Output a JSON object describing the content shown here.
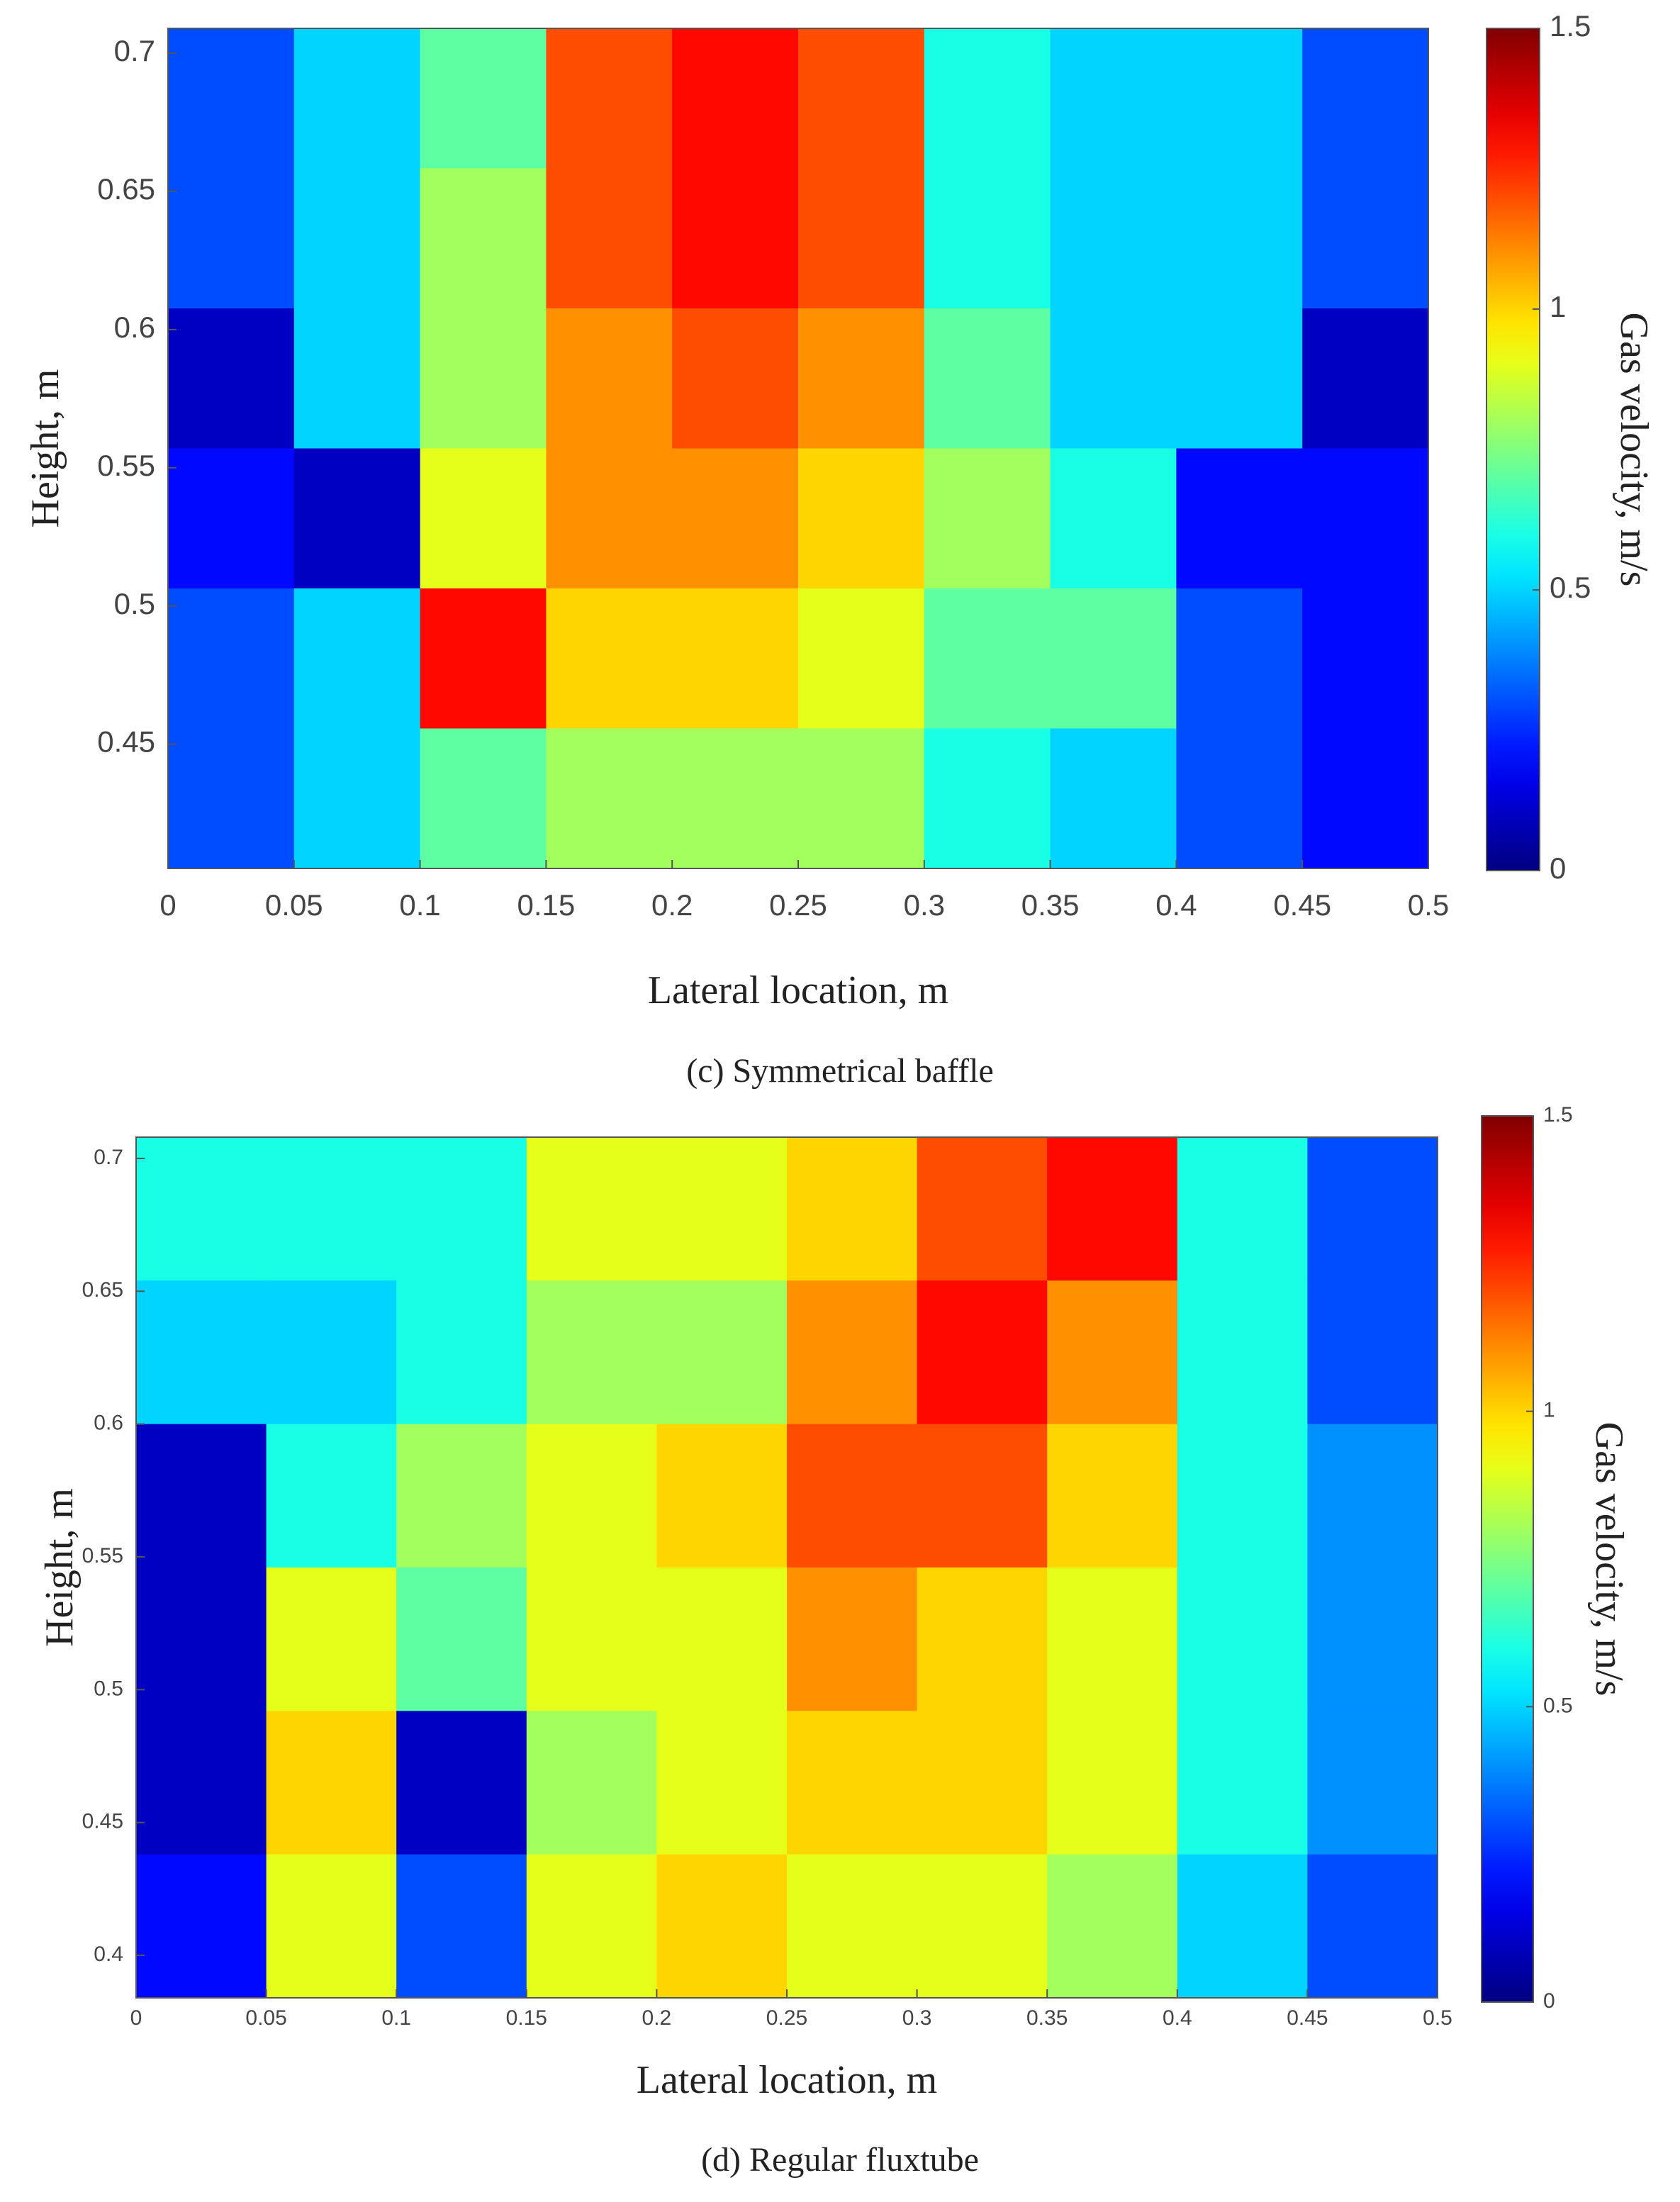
{
  "chart_data": [
    {
      "type": "contour",
      "colormap": "jet",
      "xlabel": "Lateral location, m",
      "ylabel": "Height, m",
      "caption": "(c) Symmetrical baffle",
      "xlim": [
        0,
        0.5
      ],
      "ylim": [
        0.405,
        0.709
      ],
      "xticks": [
        0,
        0.05,
        0.1,
        0.15,
        0.2,
        0.25,
        0.3,
        0.35,
        0.4,
        0.45,
        0.5
      ],
      "yticks": [
        0.45,
        0.5,
        0.55,
        0.6,
        0.65,
        0.7
      ],
      "z": [
        [
          0.3,
          0.5,
          0.7,
          1.2,
          1.3,
          1.2,
          0.6,
          0.5,
          0.5,
          0.3
        ],
        [
          0.3,
          0.5,
          0.8,
          1.2,
          1.3,
          1.2,
          0.6,
          0.5,
          0.5,
          0.3
        ],
        [
          0.1,
          0.5,
          0.8,
          1.1,
          1.2,
          1.1,
          0.7,
          0.5,
          0.5,
          0.1
        ],
        [
          0.2,
          0.1,
          0.9,
          1.1,
          1.1,
          1.0,
          0.8,
          0.6,
          0.2,
          0.2
        ],
        [
          0.3,
          0.5,
          1.3,
          1.0,
          1.0,
          0.9,
          0.7,
          0.7,
          0.3,
          0.2
        ],
        [
          0.3,
          0.5,
          0.7,
          0.8,
          0.8,
          0.8,
          0.6,
          0.5,
          0.3,
          0.2
        ]
      ],
      "colorbar": {
        "label": "Gas velocity, m/s",
        "lim": [
          0,
          1.5
        ],
        "ticks": [
          0,
          0.5,
          1,
          1.5
        ]
      }
    },
    {
      "type": "contour",
      "colormap": "jet",
      "xlabel": "Lateral location, m",
      "ylabel": "Height, m",
      "caption": "(d) Regular fluxtube",
      "xlim": [
        0,
        0.5
      ],
      "ylim": [
        0.384,
        0.708
      ],
      "xticks": [
        0,
        0.05,
        0.1,
        0.15,
        0.2,
        0.25,
        0.3,
        0.35,
        0.4,
        0.45,
        0.5
      ],
      "yticks": [
        0.4,
        0.45,
        0.5,
        0.55,
        0.6,
        0.65,
        0.7
      ],
      "z": [
        [
          0.6,
          0.6,
          0.6,
          0.9,
          0.9,
          1.0,
          1.2,
          1.3,
          0.6,
          0.3
        ],
        [
          0.5,
          0.5,
          0.6,
          0.8,
          0.8,
          1.1,
          1.3,
          1.1,
          0.6,
          0.3
        ],
        [
          0.1,
          0.6,
          0.8,
          0.9,
          1.0,
          1.2,
          1.2,
          1.0,
          0.6,
          0.4
        ],
        [
          0.1,
          0.9,
          0.7,
          0.9,
          0.9,
          1.1,
          1.0,
          0.9,
          0.6,
          0.4
        ],
        [
          0.1,
          1.0,
          0.1,
          0.8,
          0.9,
          1.0,
          1.0,
          0.9,
          0.6,
          0.4
        ],
        [
          0.2,
          0.9,
          0.3,
          0.9,
          1.0,
          0.9,
          0.9,
          0.8,
          0.5,
          0.3
        ]
      ],
      "colorbar": {
        "label": "Gas velocity, m/s",
        "lim": [
          0,
          1.5
        ],
        "ticks": [
          0,
          0.5,
          1,
          1.5
        ]
      }
    }
  ]
}
